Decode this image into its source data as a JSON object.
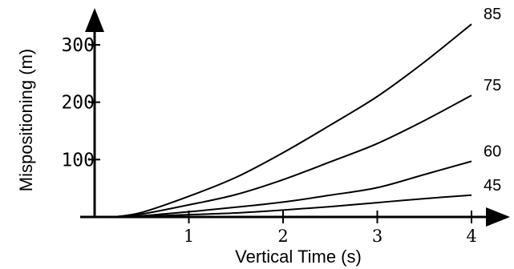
{
  "chart_data": {
    "type": "line",
    "title": "",
    "xlabel": "Vertical Time (s)",
    "ylabel": "Mispositioning (m)",
    "xlim": [
      0,
      4.4
    ],
    "ylim": [
      0,
      360
    ],
    "xticks": [
      "1",
      "2",
      "3",
      "4"
    ],
    "xtick_values": [
      1,
      2,
      3,
      4
    ],
    "yticks": [
      "100",
      "200",
      "300"
    ],
    "ytick_values": [
      100,
      200,
      300
    ],
    "grid": false,
    "legend": "none",
    "series": [
      {
        "name": "85",
        "x": [
          0.2,
          0.5,
          1,
          1.5,
          2,
          2.5,
          3,
          3.5,
          4
        ],
        "values": [
          0,
          8,
          36,
          69,
          112,
          160,
          210,
          270,
          336
        ]
      },
      {
        "name": "75",
        "x": [
          0.2,
          0.5,
          1,
          1.5,
          2,
          2.5,
          3,
          3.5,
          4
        ],
        "values": [
          0,
          5,
          21,
          39,
          65,
          96,
          128,
          168,
          212
        ]
      },
      {
        "name": "60",
        "x": [
          0.2,
          0.5,
          1,
          1.5,
          2,
          2.5,
          3,
          3.5,
          4
        ],
        "values": [
          0,
          2,
          9,
          17,
          26,
          38,
          51,
          74,
          97
        ]
      },
      {
        "name": "45",
        "x": [
          0.2,
          0.5,
          1,
          1.5,
          2,
          2.5,
          3,
          3.5,
          4
        ],
        "values": [
          0,
          1,
          4,
          7,
          12,
          18,
          25,
          32,
          38
        ]
      }
    ]
  }
}
